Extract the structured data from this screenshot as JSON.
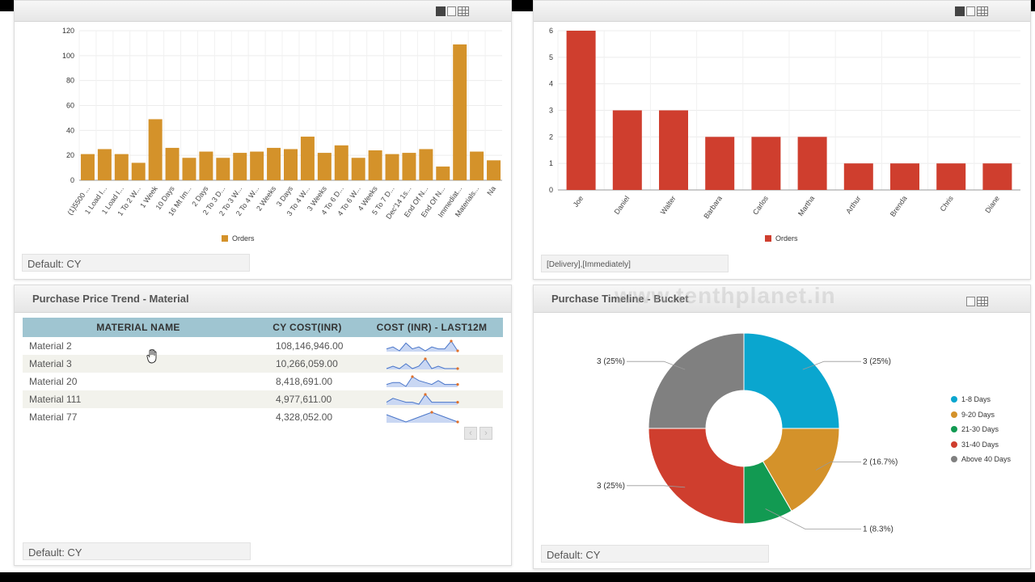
{
  "panels": {
    "top_left": {
      "footer": "Default: CY",
      "legend": "Orders",
      "chart_data": {
        "type": "bar",
        "categories": [
          "(1)5500 ...",
          "1 Load I...",
          "1 Load I...",
          "1 To 2 W...",
          "1 Week",
          "10 Days",
          "16 Mt Im...",
          "2 Days",
          "2 To 3 D...",
          "2 To 3 W...",
          "2 To 4 W...",
          "2 Weeks",
          "3 Days",
          "3 To 4 W...",
          "3 Weeks",
          "4 To 6 D...",
          "4 To 6 W...",
          "4 Weeks",
          "5 To 7 D...",
          "Dec'14 1s...",
          "End Of N...",
          "End Of N...",
          "Immediat...",
          "Materials...",
          "Na"
        ],
        "values": [
          21,
          25,
          21,
          14,
          49,
          26,
          18,
          23,
          18,
          22,
          23,
          26,
          25,
          35,
          22,
          28,
          18,
          24,
          21,
          22,
          25,
          11,
          109,
          23,
          16
        ],
        "ylim": [
          0,
          120
        ],
        "yticks": [
          0,
          20,
          40,
          60,
          80,
          100,
          120
        ],
        "series_name": "Orders",
        "color": "#d4922a"
      }
    },
    "top_right": {
      "footer": "[Delivery],[Immediately]",
      "legend": "Orders",
      "chart_data": {
        "type": "bar",
        "categories": [
          "Joe",
          "Daniel",
          "Walter",
          "Barbara",
          "Carlos",
          "Martha",
          "Arthur",
          "Brenda",
          "Chris",
          "Diane"
        ],
        "values": [
          6,
          3,
          3,
          2,
          2,
          2,
          1,
          1,
          1,
          1
        ],
        "ylim": [
          0,
          6
        ],
        "yticks": [
          0,
          1,
          2,
          3,
          4,
          5,
          6
        ],
        "series_name": "Orders",
        "color": "#cf3e2e"
      }
    },
    "bottom_left": {
      "title": "Purchase Price Trend - Material",
      "footer": "Default: CY",
      "columns": [
        "MATERIAL NAME",
        "CY COST(INR)",
        "COST (INR) - LAST12M"
      ],
      "rows": [
        {
          "name": "Material 2",
          "cost": "108,146,946.00",
          "spark": [
            2,
            3,
            1,
            5,
            2,
            3,
            1,
            3,
            2,
            2,
            6,
            1
          ]
        },
        {
          "name": "Material 3",
          "cost": "10,266,059.00",
          "spark": [
            2,
            3,
            2,
            4,
            2,
            3,
            6,
            2,
            3,
            2,
            2,
            2
          ]
        },
        {
          "name": "Material 20",
          "cost": "8,418,691.00",
          "spark": [
            2,
            3,
            3,
            1,
            6,
            4,
            3,
            2,
            4,
            2,
            2,
            2
          ]
        },
        {
          "name": "Material 111",
          "cost": "4,977,611.00",
          "spark": [
            2,
            4,
            3,
            2,
            2,
            1,
            6,
            2,
            2,
            2,
            2,
            2
          ]
        },
        {
          "name": "Material 77",
          "cost": "4,328,052.00",
          "spark": [
            4,
            3,
            2,
            1,
            2,
            3,
            4,
            5,
            4,
            3,
            2,
            1
          ]
        }
      ],
      "pager": {
        "prev": "‹",
        "next": "›"
      }
    },
    "bottom_right": {
      "title": "Purchase Timeline - Bucket",
      "footer": "Default: CY",
      "watermark": "www.tenthplanet.in",
      "chart_data": {
        "type": "pie",
        "slices": [
          {
            "label": "1-8 Days",
            "value": 3,
            "text": "3 (25%)",
            "color": "#0aa6cf"
          },
          {
            "label": "9-20 Days",
            "value": 2,
            "text": "2 (16.7%)",
            "color": "#d4922a"
          },
          {
            "label": "21-30 Days",
            "value": 1,
            "text": "1 (8.3%)",
            "color": "#129a52"
          },
          {
            "label": "31-40 Days",
            "value": 3,
            "text": "3 (25%)",
            "color": "#cf3e2e"
          },
          {
            "label": "Above 40 Days",
            "value": 3,
            "text": "3 (25%)",
            "color": "#808080"
          }
        ]
      }
    }
  }
}
